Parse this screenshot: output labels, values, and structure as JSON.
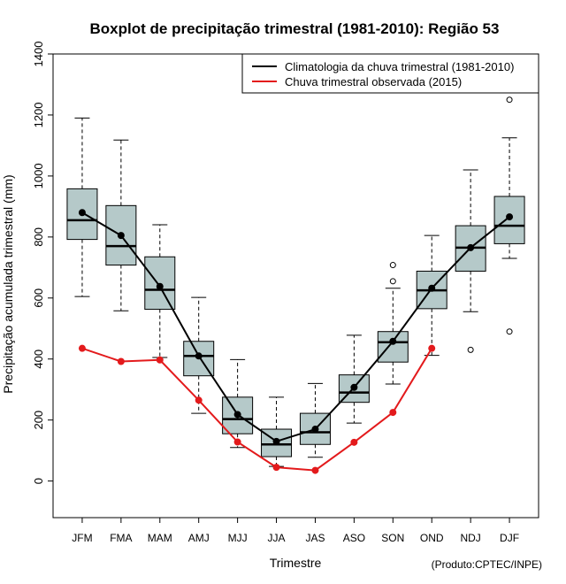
{
  "chart_data": {
    "type": "boxplot",
    "title": "Boxplot de precipitação trimestral (1981-2010): Região 53",
    "xlabel": "Trimestre",
    "ylabel": "Precipitação acumulada trimestral (mm)",
    "credit": "(Produto:CPTEC/INPE)",
    "ylim": [
      -120,
      1400
    ],
    "yticks": [
      0,
      200,
      400,
      600,
      800,
      1000,
      1200,
      1400
    ],
    "categories": [
      "JFM",
      "FMA",
      "MAM",
      "AMJ",
      "MJJ",
      "JJA",
      "JAS",
      "ASO",
      "SON",
      "OND",
      "NDJ",
      "DJF"
    ],
    "boxes": [
      {
        "min": 605,
        "q1": 792,
        "median": 855,
        "q3": 958,
        "max": 1190,
        "outliers": []
      },
      {
        "min": 558,
        "q1": 708,
        "median": 770,
        "q3": 903,
        "max": 1118,
        "outliers": []
      },
      {
        "min": 405,
        "q1": 563,
        "median": 627,
        "q3": 735,
        "max": 840,
        "outliers": []
      },
      {
        "min": 222,
        "q1": 345,
        "median": 410,
        "q3": 458,
        "max": 602,
        "outliers": []
      },
      {
        "min": 110,
        "q1": 155,
        "median": 203,
        "q3": 275,
        "max": 398,
        "outliers": []
      },
      {
        "min": 48,
        "q1": 80,
        "median": 120,
        "q3": 170,
        "max": 275,
        "outliers": []
      },
      {
        "min": 78,
        "q1": 120,
        "median": 160,
        "q3": 222,
        "max": 320,
        "outliers": []
      },
      {
        "min": 190,
        "q1": 258,
        "median": 290,
        "q3": 348,
        "max": 478,
        "outliers": []
      },
      {
        "min": 318,
        "q1": 390,
        "median": 455,
        "q3": 490,
        "max": 632,
        "outliers": [
          655,
          708
        ]
      },
      {
        "min": 412,
        "q1": 565,
        "median": 625,
        "q3": 688,
        "max": 805,
        "outliers": []
      },
      {
        "min": 555,
        "q1": 688,
        "median": 765,
        "q3": 837,
        "max": 1020,
        "outliers": [
          430
        ]
      },
      {
        "min": 730,
        "q1": 778,
        "median": 837,
        "q3": 933,
        "max": 1125,
        "outliers": [
          1250,
          490
        ]
      }
    ],
    "series": [
      {
        "name": "Climatologia da chuva trimestral (1981-2010)",
        "color": "#000000",
        "values": [
          880,
          805,
          638,
          410,
          218,
          130,
          170,
          307,
          458,
          632,
          765,
          866
        ]
      },
      {
        "name": "Chuva trimestral observada (2015)",
        "color": "#e31a1c",
        "values": [
          435,
          392,
          397,
          265,
          128,
          45,
          35,
          127,
          225,
          435,
          null,
          null
        ]
      }
    ],
    "box_fill": "#b5c9c9",
    "legend_position": "top-right"
  }
}
